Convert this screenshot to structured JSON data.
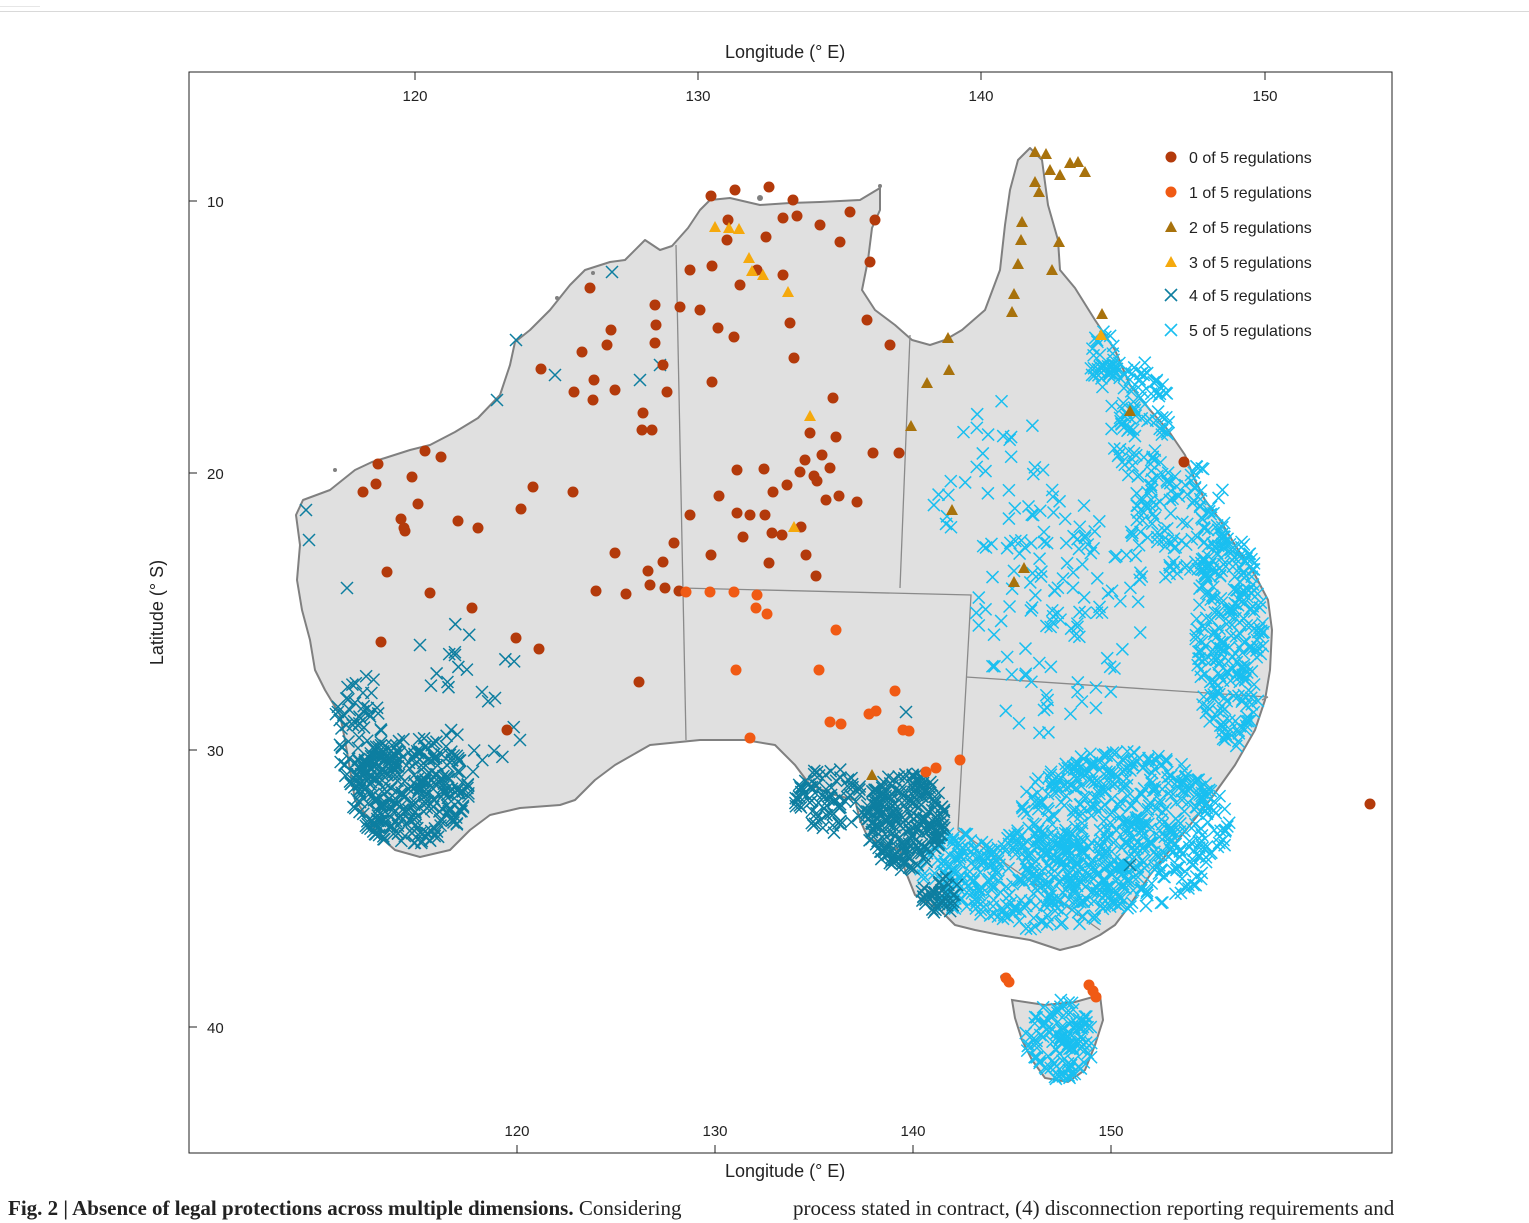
{
  "figure": {
    "top_axis_title": "Longitude (° E)",
    "bottom_axis_title": "Longitude (° E)",
    "left_axis_title": "Latitude (° S)",
    "top_ticks": [
      "120",
      "130",
      "140",
      "150"
    ],
    "bottom_ticks": [
      "120",
      "130",
      "140",
      "150"
    ],
    "left_ticks": [
      "10",
      "20",
      "30",
      "40"
    ],
    "legend": [
      {
        "label": "0 of 5 regulations",
        "marker": "circle",
        "color": "#b33a0b"
      },
      {
        "label": "1 of 5 regulations",
        "marker": "circle",
        "color": "#f05a14"
      },
      {
        "label": "2 of 5 regulations",
        "marker": "triangle",
        "color": "#a8720c"
      },
      {
        "label": "3 of 5 regulations",
        "marker": "triangle",
        "color": "#f5a90d"
      },
      {
        "label": "4 of 5 regulations",
        "marker": "cross",
        "color": "#0d7ea0"
      },
      {
        "label": "5 of 5 regulations",
        "marker": "cross",
        "color": "#19bff0"
      }
    ],
    "map_fill": "#e0e0e0",
    "coast_color": "#808080"
  },
  "caption": {
    "bold": "Fig. 2 | Absence of legal protections across multiple dimensions.",
    "text_left": " Considering",
    "text_right": "process stated in contract, (4) disconnection reporting requirements and"
  }
}
